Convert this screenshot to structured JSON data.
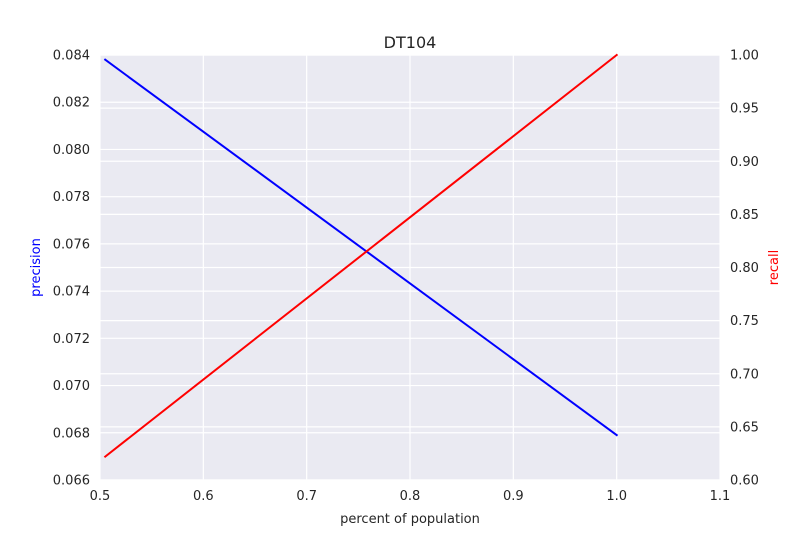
{
  "chart_data": {
    "type": "line",
    "title": "DT104",
    "xlabel": "percent of population",
    "ylabel_left": "precision",
    "ylabel_right": "recall",
    "xlim": [
      0.5,
      1.1
    ],
    "ylim_left": [
      0.066,
      0.084
    ],
    "ylim_right": [
      0.6,
      1.0
    ],
    "xticks": [
      "0.5",
      "0.6",
      "0.7",
      "0.8",
      "0.9",
      "1.0",
      "1.1"
    ],
    "yticks_left": [
      "0.066",
      "0.068",
      "0.070",
      "0.072",
      "0.074",
      "0.076",
      "0.078",
      "0.080",
      "0.082",
      "0.084"
    ],
    "yticks_right": [
      "0.60",
      "0.65",
      "0.70",
      "0.75",
      "0.80",
      "0.85",
      "0.90",
      "0.95",
      "1.00"
    ],
    "grid": true,
    "series": [
      {
        "axis": "left",
        "color": "#0000ff",
        "x": [
          0.505,
          1.0
        ],
        "y": [
          0.0838,
          0.0679
        ]
      },
      {
        "axis": "right",
        "color": "#ff0000",
        "x": [
          0.505,
          1.0
        ],
        "y": [
          0.622,
          1.0
        ]
      }
    ],
    "colors": {
      "plot_background": "#eaeaf2",
      "grid": "#ffffff",
      "text": "#262626",
      "left_label": "#0000ff",
      "right_label": "#ff0000"
    }
  }
}
